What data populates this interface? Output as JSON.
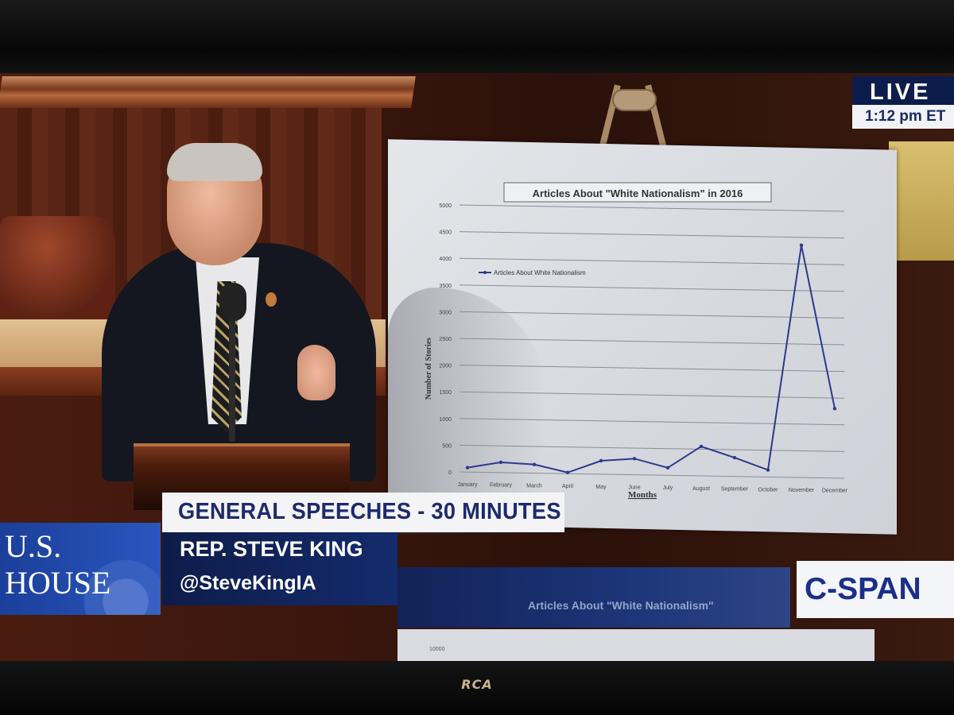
{
  "broadcast": {
    "live_label": "LIVE",
    "time": "1:12 pm ET",
    "network": "C-SPAN",
    "chamber_line1": "U.S.",
    "chamber_line2": "HOUSE",
    "segment_title": "GENERAL SPEECHES - 30 MINUTES",
    "speaker_name": "REP. STEVE KING",
    "speaker_handle": "@SteveKingIA",
    "ghost_chart_title": "Articles About \"White Nationalism\"",
    "ghost_tick": "10000",
    "tv_brand": "RCA"
  },
  "chart_data": {
    "type": "line",
    "title": "Articles About \"White Nationalism\" in 2016",
    "xlabel": "Months",
    "ylabel": "Number of Stories",
    "legend": [
      "Articles About White Nationalism"
    ],
    "legend_position": "top-left",
    "grid": true,
    "ylim": [
      0,
      5000
    ],
    "yticks": [
      0,
      500,
      1000,
      1500,
      2000,
      2500,
      3000,
      3500,
      4000,
      4500,
      5000
    ],
    "categories": [
      "January",
      "February",
      "March",
      "April",
      "May",
      "June",
      "July",
      "August",
      "September",
      "October",
      "November",
      "December"
    ],
    "series": [
      {
        "name": "Articles About White Nationalism",
        "values": [
          80,
          190,
          160,
          20,
          250,
          300,
          140,
          550,
          350,
          130,
          4350,
          1300
        ],
        "color": "#2b3a8c"
      }
    ]
  }
}
